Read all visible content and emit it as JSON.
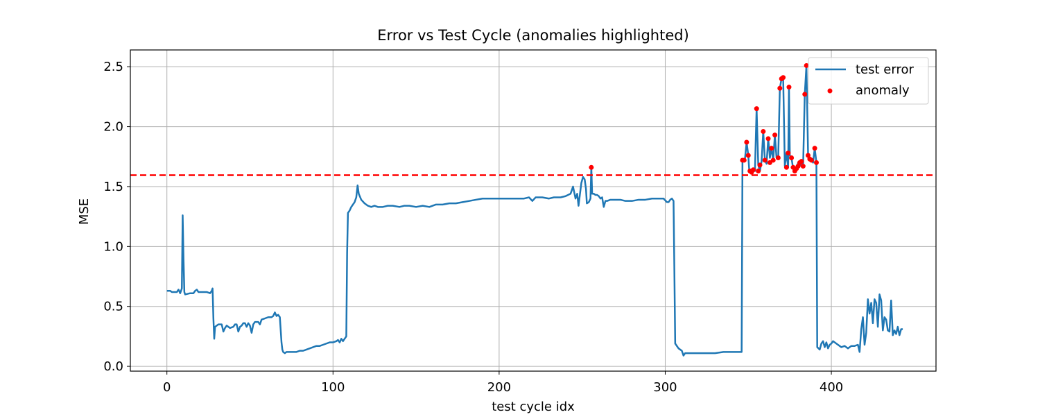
{
  "chart_data": {
    "type": "line",
    "title": "Error vs Test Cycle (anomalies highlighted)",
    "xlabel": "test cycle idx",
    "ylabel": "MSE",
    "xlim": [
      -22,
      463
    ],
    "ylim": [
      -0.04,
      2.64
    ],
    "x_ticks": [
      0,
      100,
      200,
      300,
      400
    ],
    "x_tick_labels": [
      "0",
      "100",
      "200",
      "300",
      "400"
    ],
    "y_ticks": [
      0.0,
      0.5,
      1.0,
      1.5,
      2.0,
      2.5
    ],
    "y_tick_labels": [
      "0.0",
      "0.5",
      "1.0",
      "1.5",
      "2.0",
      "2.5"
    ],
    "grid": true,
    "legend_position": "top-right",
    "threshold": {
      "value": 1.595,
      "color": "#ff0000",
      "style": "dashed"
    },
    "series": [
      {
        "name": "test error",
        "kind": "line",
        "color": "#1f77b4",
        "points": [
          [
            0,
            0.63
          ],
          [
            2,
            0.63
          ],
          [
            3,
            0.62
          ],
          [
            6,
            0.62
          ],
          [
            7,
            0.64
          ],
          [
            8,
            0.61
          ],
          [
            9,
            0.65
          ],
          [
            9.5,
            1.26
          ],
          [
            10,
            0.9
          ],
          [
            10.5,
            0.62
          ],
          [
            11,
            0.6
          ],
          [
            14,
            0.61
          ],
          [
            16,
            0.61
          ],
          [
            17,
            0.63
          ],
          [
            18,
            0.64
          ],
          [
            19,
            0.62
          ],
          [
            20,
            0.62
          ],
          [
            24,
            0.62
          ],
          [
            26,
            0.61
          ],
          [
            27,
            0.63
          ],
          [
            27.5,
            0.65
          ],
          [
            28,
            0.4
          ],
          [
            28.5,
            0.23
          ],
          [
            29,
            0.33
          ],
          [
            31,
            0.35
          ],
          [
            33,
            0.35
          ],
          [
            34,
            0.29
          ],
          [
            35,
            0.32
          ],
          [
            36,
            0.34
          ],
          [
            38,
            0.32
          ],
          [
            40,
            0.33
          ],
          [
            41,
            0.35
          ],
          [
            42,
            0.35
          ],
          [
            43,
            0.29
          ],
          [
            44,
            0.33
          ],
          [
            45,
            0.34
          ],
          [
            46,
            0.36
          ],
          [
            47,
            0.36
          ],
          [
            48,
            0.33
          ],
          [
            49,
            0.36
          ],
          [
            50,
            0.34
          ],
          [
            51,
            0.28
          ],
          [
            52,
            0.35
          ],
          [
            53,
            0.37
          ],
          [
            55,
            0.37
          ],
          [
            56,
            0.35
          ],
          [
            57,
            0.39
          ],
          [
            59,
            0.4
          ],
          [
            61,
            0.41
          ],
          [
            63,
            0.41
          ],
          [
            64,
            0.42
          ],
          [
            65,
            0.45
          ],
          [
            66,
            0.42
          ],
          [
            67,
            0.43
          ],
          [
            68,
            0.41
          ],
          [
            69,
            0.2
          ],
          [
            69.5,
            0.14
          ],
          [
            70,
            0.12
          ],
          [
            71,
            0.11
          ],
          [
            72,
            0.12
          ],
          [
            74,
            0.12
          ],
          [
            76,
            0.12
          ],
          [
            78,
            0.12
          ],
          [
            80,
            0.13
          ],
          [
            82,
            0.13
          ],
          [
            84,
            0.14
          ],
          [
            86,
            0.15
          ],
          [
            88,
            0.16
          ],
          [
            90,
            0.17
          ],
          [
            92,
            0.17
          ],
          [
            94,
            0.18
          ],
          [
            96,
            0.19
          ],
          [
            98,
            0.2
          ],
          [
            100,
            0.2
          ],
          [
            102,
            0.21
          ],
          [
            103,
            0.22
          ],
          [
            104,
            0.2
          ],
          [
            105,
            0.23
          ],
          [
            106,
            0.21
          ],
          [
            107,
            0.23
          ],
          [
            108,
            0.25
          ],
          [
            108.5,
            0.95
          ],
          [
            109,
            1.28
          ],
          [
            110,
            1.3
          ],
          [
            111,
            1.33
          ],
          [
            113,
            1.37
          ],
          [
            114,
            1.41
          ],
          [
            114.8,
            1.51
          ],
          [
            115.5,
            1.44
          ],
          [
            117,
            1.39
          ],
          [
            119,
            1.36
          ],
          [
            121,
            1.34
          ],
          [
            123,
            1.33
          ],
          [
            125,
            1.34
          ],
          [
            127,
            1.33
          ],
          [
            130,
            1.33
          ],
          [
            133,
            1.34
          ],
          [
            136,
            1.34
          ],
          [
            140,
            1.33
          ],
          [
            143,
            1.34
          ],
          [
            146,
            1.34
          ],
          [
            150,
            1.33
          ],
          [
            154,
            1.34
          ],
          [
            158,
            1.33
          ],
          [
            162,
            1.35
          ],
          [
            166,
            1.35
          ],
          [
            170,
            1.36
          ],
          [
            174,
            1.36
          ],
          [
            178,
            1.37
          ],
          [
            182,
            1.38
          ],
          [
            186,
            1.39
          ],
          [
            190,
            1.4
          ],
          [
            195,
            1.4
          ],
          [
            200,
            1.4
          ],
          [
            205,
            1.4
          ],
          [
            210,
            1.4
          ],
          [
            215,
            1.4
          ],
          [
            218,
            1.41
          ],
          [
            220,
            1.38
          ],
          [
            222,
            1.41
          ],
          [
            226,
            1.41
          ],
          [
            230,
            1.4
          ],
          [
            233,
            1.41
          ],
          [
            237,
            1.41
          ],
          [
            240,
            1.42
          ],
          [
            243,
            1.44
          ],
          [
            244.5,
            1.5
          ],
          [
            246,
            1.4
          ],
          [
            247,
            1.44
          ],
          [
            247.8,
            1.34
          ],
          [
            248.6,
            1.43
          ],
          [
            249.5,
            1.53
          ],
          [
            250.5,
            1.58
          ],
          [
            251.5,
            1.56
          ],
          [
            252.3,
            1.48
          ],
          [
            252.8,
            1.36
          ],
          [
            254,
            1.37
          ],
          [
            255,
            1.4
          ],
          [
            255.5,
            1.66
          ],
          [
            256,
            1.44
          ],
          [
            257,
            1.44
          ],
          [
            258,
            1.43
          ],
          [
            259,
            1.43
          ],
          [
            260,
            1.42
          ],
          [
            261,
            1.4
          ],
          [
            262,
            1.41
          ],
          [
            263,
            1.33
          ],
          [
            264,
            1.38
          ],
          [
            265,
            1.38
          ],
          [
            267,
            1.39
          ],
          [
            270,
            1.39
          ],
          [
            273,
            1.39
          ],
          [
            276,
            1.38
          ],
          [
            280,
            1.38
          ],
          [
            284,
            1.39
          ],
          [
            288,
            1.39
          ],
          [
            292,
            1.4
          ],
          [
            296,
            1.4
          ],
          [
            299,
            1.4
          ],
          [
            301,
            1.37
          ],
          [
            302,
            1.37
          ],
          [
            303,
            1.39
          ],
          [
            304,
            1.4
          ],
          [
            305,
            1.38
          ],
          [
            305.5,
            0.8
          ],
          [
            306,
            0.19
          ],
          [
            308,
            0.15
          ],
          [
            310,
            0.13
          ],
          [
            311,
            0.09
          ],
          [
            312,
            0.11
          ],
          [
            315,
            0.11
          ],
          [
            320,
            0.11
          ],
          [
            325,
            0.11
          ],
          [
            330,
            0.11
          ],
          [
            335,
            0.12
          ],
          [
            340,
            0.12
          ],
          [
            344,
            0.12
          ],
          [
            346,
            0.12
          ],
          [
            346.5,
            1.72
          ],
          [
            347,
            1.71
          ],
          [
            348,
            1.73
          ],
          [
            349,
            1.87
          ],
          [
            350,
            1.76
          ],
          [
            350.5,
            1.65
          ],
          [
            351,
            1.63
          ],
          [
            352,
            1.62
          ],
          [
            353,
            1.64
          ],
          [
            354,
            1.63
          ],
          [
            355,
            2.15
          ],
          [
            356,
            1.68
          ],
          [
            357,
            1.63
          ],
          [
            358,
            1.71
          ],
          [
            359,
            1.96
          ],
          [
            360,
            1.72
          ],
          [
            361,
            1.69
          ],
          [
            362,
            1.9
          ],
          [
            363,
            1.74
          ],
          [
            364,
            1.82
          ],
          [
            365,
            1.72
          ],
          [
            366,
            1.93
          ],
          [
            367,
            1.74
          ],
          [
            368,
            1.73
          ],
          [
            369,
            2.32
          ],
          [
            370,
            2.4
          ],
          [
            371,
            2.41
          ],
          [
            372,
            1.67
          ],
          [
            373,
            1.78
          ],
          [
            374,
            1.66
          ],
          [
            374.5,
            2.33
          ],
          [
            375,
            1.76
          ],
          [
            376,
            1.74
          ],
          [
            377,
            1.65
          ],
          [
            378,
            1.63
          ],
          [
            379,
            1.65
          ],
          [
            380,
            1.7
          ],
          [
            381,
            1.67
          ],
          [
            382,
            1.71
          ],
          [
            383,
            1.67
          ],
          [
            384,
            2.27
          ],
          [
            385,
            2.51
          ],
          [
            386,
            1.76
          ],
          [
            387,
            1.73
          ],
          [
            388,
            1.72
          ],
          [
            389,
            1.7
          ],
          [
            390,
            1.82
          ],
          [
            391,
            1.7
          ],
          [
            391.5,
            0.16
          ],
          [
            393,
            0.14
          ],
          [
            394,
            0.19
          ],
          [
            395,
            0.21
          ],
          [
            396,
            0.16
          ],
          [
            397,
            0.2
          ],
          [
            398,
            0.15
          ],
          [
            399,
            0.18
          ],
          [
            400,
            0.19
          ],
          [
            401,
            0.21
          ],
          [
            402,
            0.2
          ],
          [
            404,
            0.18
          ],
          [
            406,
            0.16
          ],
          [
            408,
            0.17
          ],
          [
            410,
            0.15
          ],
          [
            412,
            0.17
          ],
          [
            414,
            0.17
          ],
          [
            416,
            0.18
          ],
          [
            417,
            0.12
          ],
          [
            418,
            0.31
          ],
          [
            419,
            0.41
          ],
          [
            420,
            0.18
          ],
          [
            421,
            0.28
          ],
          [
            422,
            0.56
          ],
          [
            423,
            0.44
          ],
          [
            424,
            0.53
          ],
          [
            425,
            0.36
          ],
          [
            426,
            0.56
          ],
          [
            427,
            0.53
          ],
          [
            428,
            0.33
          ],
          [
            429,
            0.6
          ],
          [
            430,
            0.55
          ],
          [
            431,
            0.3
          ],
          [
            432,
            0.41
          ],
          [
            433,
            0.39
          ],
          [
            434,
            0.3
          ],
          [
            435,
            0.29
          ],
          [
            436,
            0.55
          ],
          [
            437,
            0.26
          ],
          [
            438,
            0.3
          ],
          [
            439,
            0.27
          ],
          [
            440,
            0.33
          ],
          [
            441,
            0.26
          ],
          [
            442,
            0.31
          ],
          [
            443,
            0.31
          ]
        ]
      },
      {
        "name": "anomaly",
        "kind": "scatter",
        "color": "#ff0000",
        "points": [
          [
            255.5,
            1.66
          ],
          [
            346.5,
            1.72
          ],
          [
            347.5,
            1.72
          ],
          [
            349,
            1.87
          ],
          [
            350,
            1.76
          ],
          [
            351,
            1.63
          ],
          [
            352,
            1.62
          ],
          [
            353,
            1.64
          ],
          [
            355,
            2.15
          ],
          [
            356,
            1.63
          ],
          [
            357,
            1.68
          ],
          [
            359,
            1.96
          ],
          [
            360,
            1.72
          ],
          [
            362,
            1.9
          ],
          [
            363,
            1.7
          ],
          [
            364,
            1.82
          ],
          [
            365,
            1.72
          ],
          [
            366,
            1.93
          ],
          [
            368,
            1.74
          ],
          [
            369,
            2.32
          ],
          [
            370,
            2.4
          ],
          [
            371,
            2.41
          ],
          [
            373,
            1.66
          ],
          [
            374,
            1.78
          ],
          [
            374.5,
            2.33
          ],
          [
            376,
            1.74
          ],
          [
            377,
            1.66
          ],
          [
            378,
            1.63
          ],
          [
            379,
            1.65
          ],
          [
            380,
            1.67
          ],
          [
            381,
            1.7
          ],
          [
            382,
            1.71
          ],
          [
            383,
            1.67
          ],
          [
            384,
            2.27
          ],
          [
            385,
            2.51
          ],
          [
            386,
            1.76
          ],
          [
            387,
            1.73
          ],
          [
            388,
            1.72
          ],
          [
            390,
            1.82
          ],
          [
            391,
            1.7
          ]
        ]
      }
    ]
  }
}
